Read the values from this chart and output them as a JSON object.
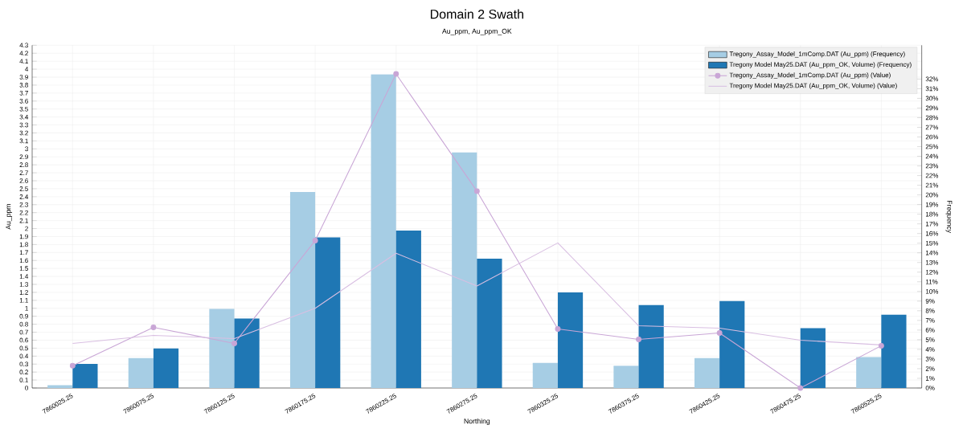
{
  "chart_data": {
    "type": "bar",
    "title": "Domain 2 Swath",
    "subtitle": "Au_ppm, Au_ppm_OK",
    "xlabel": "Northing",
    "ylabel": "Au_ppm",
    "y2label": "Frequency",
    "categories": [
      "7860025.25",
      "7860075.25",
      "7860125.25",
      "7860175.25",
      "7860225.25",
      "7860275.25",
      "7860325.25",
      "7860375.25",
      "7860425.25",
      "7860475.25",
      "7860525.25"
    ],
    "series": [
      {
        "name": "Tregony_Assay_Model_1mComp.DAT (Au_ppm) (Frequency)",
        "axis": "y2",
        "color": "#a6cde4",
        "values": [
          0.3,
          3.1,
          8.2,
          20.3,
          32.5,
          24.4,
          2.6,
          2.3,
          3.1,
          null,
          3.2
        ]
      },
      {
        "name": "Tregony Model May25.DAT (Au_ppm_OK, Volume) (Frequency)",
        "axis": "y2",
        "color": "#1f77b4",
        "values": [
          2.5,
          4.1,
          7.2,
          15.6,
          16.3,
          13.4,
          9.9,
          8.6,
          9.0,
          6.2,
          7.6
        ]
      },
      {
        "name": "Tregony_Assay_Model_1mComp.DAT (Au_ppm) (Value)",
        "type": "line",
        "axis": "y",
        "marker": "circle",
        "color": "#c9a6d6",
        "values": [
          0.28,
          0.76,
          0.56,
          1.85,
          3.94,
          2.47,
          0.74,
          0.61,
          0.69,
          0.0,
          0.53
        ]
      },
      {
        "name": "Tregony Model May25.DAT (Au_ppm_OK, Volume) (Value)",
        "type": "line",
        "axis": "y",
        "marker": "none",
        "color": "#d9bfe2",
        "values": [
          0.56,
          0.66,
          0.62,
          1.0,
          1.69,
          1.28,
          1.82,
          0.78,
          0.75,
          0.6,
          0.54
        ]
      }
    ],
    "ylim": [
      0,
      4.3
    ],
    "yticks": [
      0,
      0.1,
      0.2,
      0.3,
      0.4,
      0.5,
      0.6,
      0.7,
      0.8,
      0.9,
      1,
      1.1,
      1.2,
      1.3,
      1.4,
      1.5,
      1.6,
      1.7,
      1.8,
      1.9,
      2,
      2.1,
      2.2,
      2.3,
      2.4,
      2.5,
      2.6,
      2.7,
      2.8,
      2.9,
      3,
      3.1,
      3.2,
      3.3,
      3.4,
      3.5,
      3.6,
      3.7,
      3.8,
      3.9,
      4,
      4.1,
      4.2,
      4.3
    ],
    "y2lim": [
      0,
      35.5
    ],
    "y2ticks": [
      {
        "value": 0,
        "label": "0%"
      },
      {
        "value": 1,
        "label": "1%"
      },
      {
        "value": 2,
        "label": "2%"
      },
      {
        "value": 3,
        "label": "3%"
      },
      {
        "value": 4,
        "label": "4%"
      },
      {
        "value": 5,
        "label": "5%"
      },
      {
        "value": 6,
        "label": "6%"
      },
      {
        "value": 7,
        "label": "7%"
      },
      {
        "value": 8,
        "label": "8%"
      },
      {
        "value": 9,
        "label": "9%"
      },
      {
        "value": 10,
        "label": "10%"
      },
      {
        "value": 11,
        "label": "11%"
      },
      {
        "value": 12,
        "label": "12%"
      },
      {
        "value": 13,
        "label": "13%"
      },
      {
        "value": 14,
        "label": "14%"
      },
      {
        "value": 15,
        "label": "15%"
      },
      {
        "value": 16,
        "label": "16%"
      },
      {
        "value": 17,
        "label": "17%"
      },
      {
        "value": 18,
        "label": "18%"
      },
      {
        "value": 19,
        "label": "19%"
      },
      {
        "value": 20,
        "label": "20%"
      },
      {
        "value": 21,
        "label": "21%"
      },
      {
        "value": 22,
        "label": "22%"
      },
      {
        "value": 23,
        "label": "23%"
      },
      {
        "value": 24,
        "label": "24%"
      },
      {
        "value": 25,
        "label": "25%"
      },
      {
        "value": 26,
        "label": "26%"
      },
      {
        "value": 27,
        "label": "27%"
      },
      {
        "value": 28,
        "label": "28%"
      },
      {
        "value": 29,
        "label": "29%"
      },
      {
        "value": 30,
        "label": "30%"
      },
      {
        "value": 31,
        "label": "31%"
      },
      {
        "value": 32,
        "label": "32%"
      }
    ],
    "grid": true,
    "legend": "top right"
  }
}
